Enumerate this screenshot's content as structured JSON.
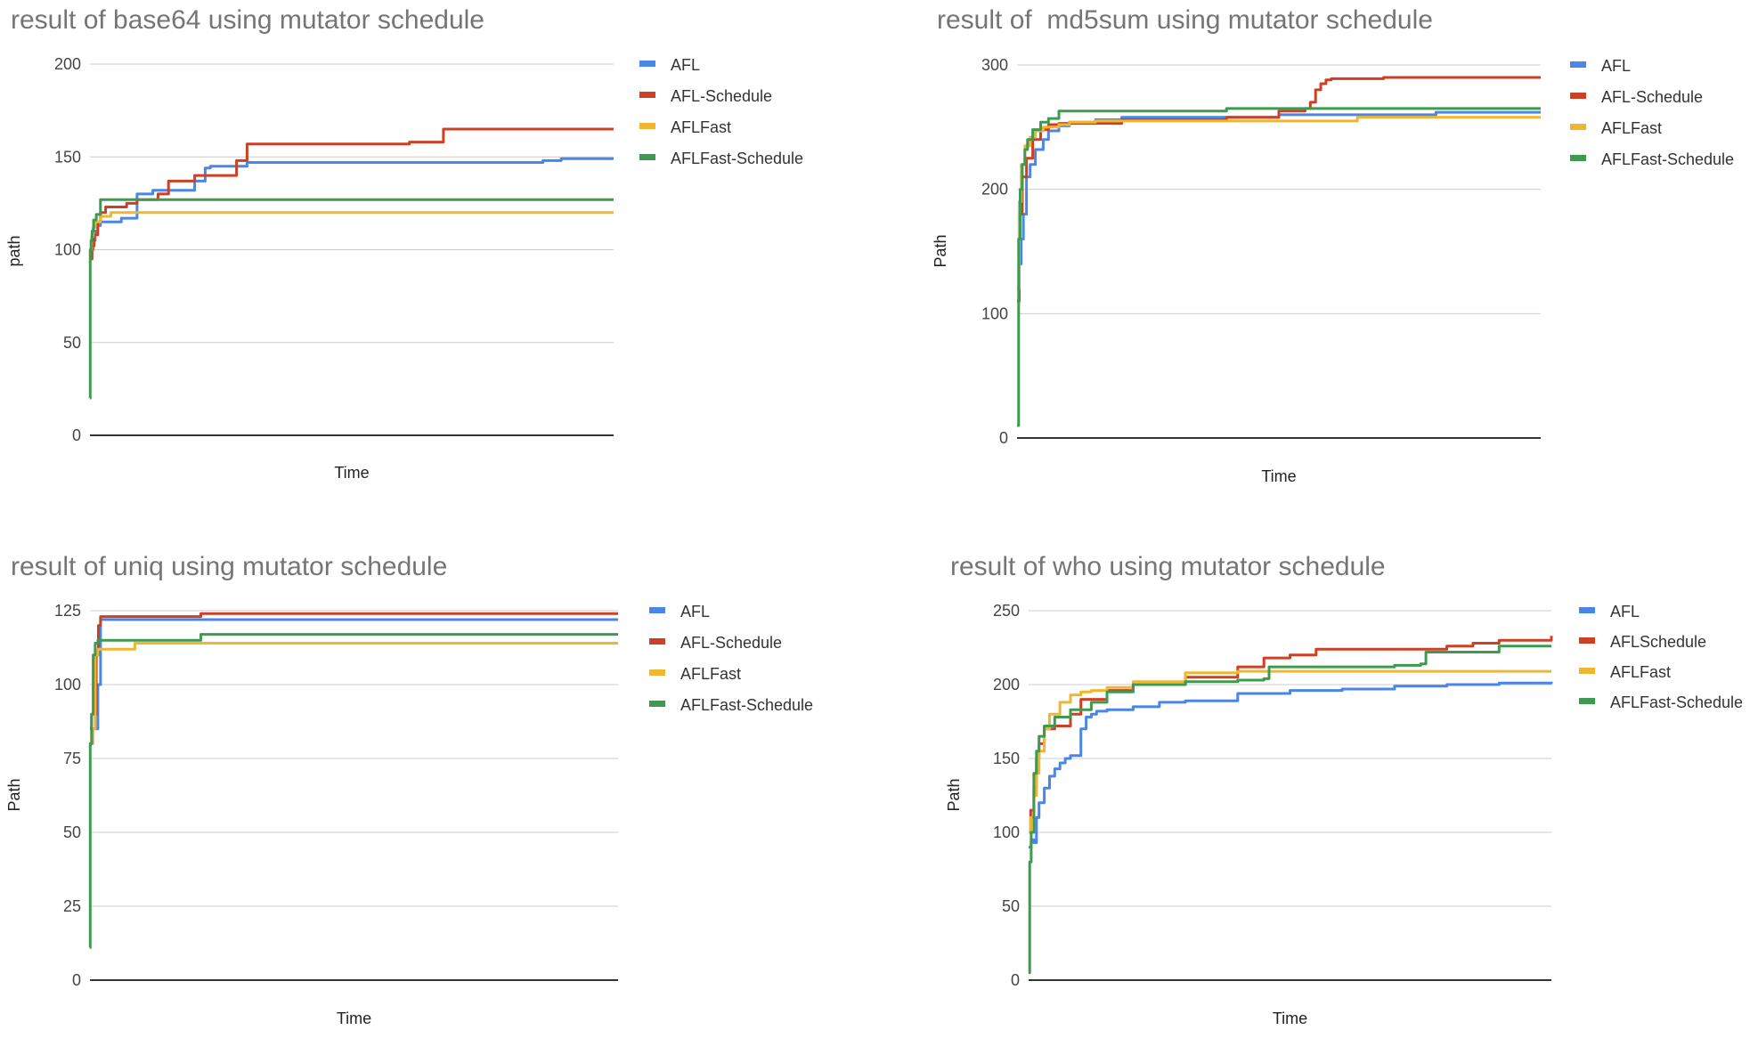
{
  "chart_data": [
    {
      "type": "line",
      "title": "result of base64 using mutator schedule",
      "xlabel": "Time",
      "ylabel": "path",
      "ylim": [
        0,
        200
      ],
      "yticks": [
        0,
        50,
        100,
        150,
        200
      ],
      "xlim": [
        0,
        1
      ],
      "grid": true,
      "legend_position": "right",
      "series": [
        {
          "name": "AFL",
          "color": "#4a86e8",
          "x": [
            0,
            0.003,
            0.006,
            0.01,
            0.015,
            0.02,
            0.035,
            0.06,
            0.09,
            0.12,
            0.2,
            0.22,
            0.23,
            0.3,
            0.3001,
            0.855,
            0.865,
            0.87,
            0.9,
            1.0
          ],
          "y": [
            96,
            100,
            105,
            110,
            113,
            115,
            115,
            117,
            130,
            132,
            137,
            144,
            145,
            147,
            147,
            147,
            148,
            148,
            149,
            149
          ]
        },
        {
          "name": "AFL-Schedule",
          "color": "#cc4125",
          "x": [
            0,
            0.004,
            0.008,
            0.015,
            0.02,
            0.03,
            0.07,
            0.09,
            0.13,
            0.15,
            0.2,
            0.22,
            0.28,
            0.3,
            0.6,
            0.61,
            0.67,
            0.675,
            1.0
          ],
          "y": [
            95,
            102,
            108,
            115,
            120,
            123,
            125,
            127,
            130,
            137,
            140,
            140,
            148,
            157,
            157,
            158,
            158,
            165,
            165
          ]
        },
        {
          "name": "AFLFast",
          "color": "#f1b62f",
          "x": [
            0,
            0.003,
            0.006,
            0.01,
            0.02,
            0.04,
            1.0
          ],
          "y": [
            100,
            107,
            112,
            115,
            118,
            120,
            120
          ]
        },
        {
          "name": "AFLFast-Schedule",
          "color": "#3d9a4f",
          "x": [
            0,
            0.0005,
            0.002,
            0.004,
            0.007,
            0.012,
            0.02,
            0.02,
            1.0
          ],
          "y": [
            20,
            100,
            105,
            110,
            116,
            119,
            120,
            127,
            127
          ]
        }
      ]
    },
    {
      "type": "line",
      "title": "result of  md5sum using mutator schedule",
      "xlabel": "Time",
      "ylabel": "Path",
      "ylim": [
        0,
        300
      ],
      "yticks": [
        0,
        100,
        200,
        300
      ],
      "xlim": [
        0,
        1
      ],
      "grid": true,
      "legend_position": "right",
      "series": [
        {
          "name": "AFL",
          "color": "#4a86e8",
          "x": [
            0,
            0.004,
            0.008,
            0.012,
            0.018,
            0.025,
            0.035,
            0.05,
            0.06,
            0.08,
            0.1,
            0.15,
            0.2,
            0.3,
            0.4,
            0.5,
            0.6,
            0.7,
            0.8,
            0.9,
            1.0
          ],
          "y": [
            110,
            140,
            160,
            180,
            210,
            220,
            232,
            240,
            247,
            251,
            254,
            256,
            258,
            258,
            258,
            260,
            260,
            260,
            262,
            262,
            262
          ]
        },
        {
          "name": "AFL-Schedule",
          "color": "#cc4125",
          "x": [
            0,
            0.004,
            0.01,
            0.018,
            0.03,
            0.045,
            0.06,
            0.08,
            0.15,
            0.2,
            0.3,
            0.4,
            0.5,
            0.55,
            0.56,
            0.57,
            0.58,
            0.59,
            0.6,
            0.7,
            0.8,
            1.0
          ],
          "y": [
            110,
            180,
            210,
            225,
            240,
            248,
            252,
            253,
            253,
            256,
            256,
            258,
            263,
            265,
            270,
            280,
            285,
            288,
            289,
            290,
            290,
            290
          ]
        },
        {
          "name": "AFLFast",
          "color": "#f1b62f",
          "x": [
            0,
            0.004,
            0.008,
            0.015,
            0.025,
            0.035,
            0.05,
            0.08,
            0.1,
            0.15,
            0.4,
            0.5,
            0.6,
            0.65,
            1.0
          ],
          "y": [
            120,
            190,
            220,
            235,
            242,
            247,
            250,
            252,
            254,
            255,
            255,
            255,
            255,
            258,
            258
          ]
        },
        {
          "name": "AFLFast-Schedule",
          "color": "#3d9a4f",
          "x": [
            0,
            0.003,
            0.006,
            0.01,
            0.015,
            0.02,
            0.03,
            0.045,
            0.06,
            0.08,
            0.3,
            0.4,
            0.5,
            1.0
          ],
          "y": [
            10,
            160,
            200,
            220,
            232,
            240,
            248,
            254,
            257,
            263,
            263,
            265,
            265,
            265
          ]
        }
      ]
    },
    {
      "type": "line",
      "title": "result of uniq using mutator schedule",
      "xlabel": "Time",
      "ylabel": "Path",
      "ylim": [
        0,
        125
      ],
      "yticks": [
        0,
        25,
        50,
        75,
        100,
        125
      ],
      "xlim": [
        0,
        1
      ],
      "grid": true,
      "legend_position": "right",
      "series": [
        {
          "name": "AFL",
          "color": "#4a86e8",
          "x": [
            0,
            0.005,
            0.012,
            0.015,
            0.02,
            0.02,
            1.0
          ],
          "y": [
            80,
            85,
            85,
            100,
            110,
            122,
            122
          ]
        },
        {
          "name": "AFL-Schedule",
          "color": "#cc4125",
          "x": [
            0,
            0.003,
            0.008,
            0.012,
            0.016,
            0.02,
            0.21,
            0.21,
            1.0
          ],
          "y": [
            85,
            90,
            90,
            110,
            120,
            123,
            123,
            124,
            124
          ]
        },
        {
          "name": "AFLFast",
          "color": "#f1b62f",
          "x": [
            0,
            0.004,
            0.01,
            0.015,
            0.08,
            0.085,
            1.0
          ],
          "y": [
            80,
            85,
            110,
            112,
            112,
            114,
            114
          ]
        },
        {
          "name": "AFLFast-Schedule",
          "color": "#3d9a4f",
          "x": [
            0,
            0.0005,
            0.003,
            0.006,
            0.01,
            0.015,
            0.21,
            0.21,
            1.0
          ],
          "y": [
            11,
            80,
            90,
            110,
            114,
            115,
            115,
            117,
            117
          ]
        }
      ]
    },
    {
      "type": "line",
      "title": "result of who using mutator schedule",
      "xlabel": "Time",
      "ylabel": "Path",
      "ylim": [
        0,
        250
      ],
      "yticks": [
        0,
        50,
        100,
        150,
        200,
        250
      ],
      "xlim": [
        0,
        1
      ],
      "grid": true,
      "legend_position": "right",
      "series": [
        {
          "name": "AFL",
          "color": "#4a86e8",
          "x": [
            0,
            0.005,
            0.01,
            0.015,
            0.02,
            0.03,
            0.04,
            0.05,
            0.06,
            0.07,
            0.08,
            0.1,
            0.11,
            0.12,
            0.13,
            0.15,
            0.2,
            0.25,
            0.3,
            0.4,
            0.5,
            0.6,
            0.7,
            0.8,
            0.9,
            1.0
          ],
          "y": [
            90,
            95,
            93,
            110,
            120,
            130,
            138,
            143,
            147,
            150,
            152,
            170,
            178,
            180,
            182,
            183,
            185,
            188,
            189,
            194,
            196,
            197,
            199,
            200,
            201,
            202
          ]
        },
        {
          "name": "AFLSchedule",
          "color": "#cc4125",
          "x": [
            0,
            0.004,
            0.01,
            0.015,
            0.02,
            0.03,
            0.05,
            0.08,
            0.1,
            0.15,
            0.2,
            0.3,
            0.4,
            0.45,
            0.5,
            0.55,
            0.7,
            0.8,
            0.85,
            0.9,
            1.0
          ],
          "y": [
            100,
            115,
            130,
            150,
            160,
            170,
            172,
            180,
            190,
            196,
            200,
            205,
            212,
            218,
            220,
            224,
            224,
            226,
            228,
            230,
            233
          ]
        },
        {
          "name": "AFLFast",
          "color": "#f1b62f",
          "x": [
            0,
            0.004,
            0.01,
            0.015,
            0.02,
            0.03,
            0.04,
            0.06,
            0.08,
            0.1,
            0.12,
            0.15,
            0.2,
            0.3,
            0.4,
            0.5,
            1.0
          ],
          "y": [
            100,
            110,
            125,
            140,
            155,
            170,
            180,
            188,
            193,
            195,
            196,
            198,
            202,
            208,
            209,
            209,
            209
          ]
        },
        {
          "name": "AFLFast-Schedule",
          "color": "#3d9a4f",
          "x": [
            0,
            0.002,
            0.005,
            0.01,
            0.015,
            0.02,
            0.03,
            0.05,
            0.08,
            0.12,
            0.15,
            0.2,
            0.3,
            0.4,
            0.45,
            0.46,
            0.7,
            0.75,
            0.76,
            0.9,
            0.9,
            1.0
          ],
          "y": [
            5,
            80,
            100,
            140,
            155,
            165,
            172,
            178,
            183,
            188,
            195,
            200,
            202,
            203,
            204,
            212,
            213,
            214,
            222,
            222,
            226,
            226
          ]
        }
      ]
    }
  ]
}
